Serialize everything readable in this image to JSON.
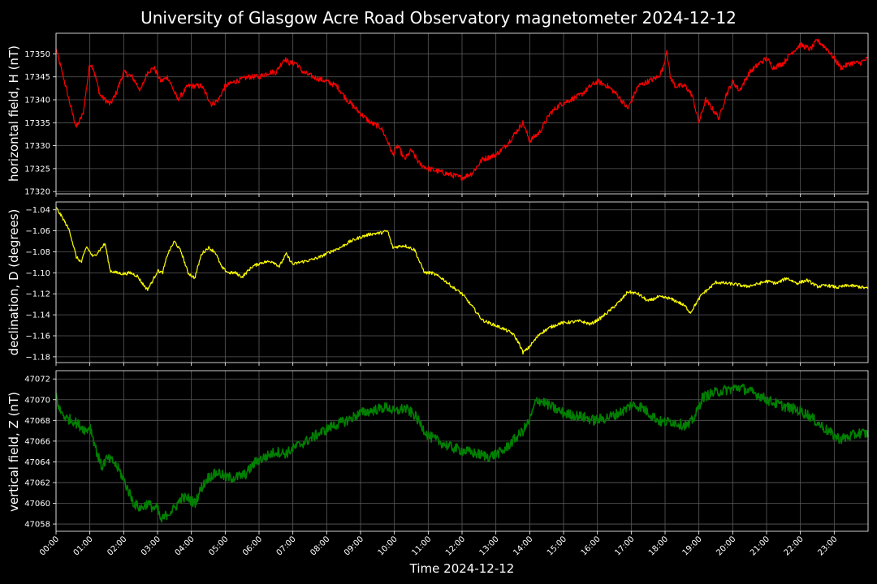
{
  "figure": {
    "title": "University of Glasgow Acre Road Observatory magnetometer 2024-12-12",
    "xlabel": "Time 2024-12-12"
  },
  "chart_data": [
    {
      "type": "line",
      "ylabel": "horizontal field, H (nT)",
      "color": "#ff0000",
      "xlim": [
        0,
        24
      ],
      "ylim": [
        17319.5,
        17354.5
      ],
      "yticks": [
        17320,
        17325,
        17330,
        17335,
        17340,
        17345,
        17350
      ],
      "x_ticklabels": [],
      "noise": 0.6,
      "series": [
        {
          "x": [
            0.0,
            0.25,
            0.45,
            0.6,
            0.8,
            1.0,
            1.1,
            1.3,
            1.6,
            1.75,
            2.0,
            2.25,
            2.5,
            2.7,
            2.9,
            3.1,
            3.3,
            3.6,
            3.9,
            4.3,
            4.6,
            4.8,
            5.0,
            5.3,
            5.7,
            6.0,
            6.3,
            6.5,
            6.75,
            6.9,
            7.1,
            7.3,
            7.6,
            8.0,
            8.3,
            8.6,
            9.0,
            9.3,
            9.6,
            9.8,
            9.95,
            10.1,
            10.3,
            10.5,
            10.75,
            11.0,
            11.5,
            12.0,
            12.3,
            12.6,
            13.0,
            13.3,
            13.6,
            13.8,
            14.0,
            14.3,
            14.6,
            14.9,
            15.2,
            15.5,
            15.8,
            16.0,
            16.3,
            16.6,
            16.9,
            17.2,
            17.5,
            17.8,
            17.95,
            18.05,
            18.15,
            18.3,
            18.6,
            18.8,
            19.0,
            19.2,
            19.4,
            19.6,
            19.8,
            20.0,
            20.2,
            20.5,
            20.8,
            21.0,
            21.2,
            21.5,
            21.7,
            22.0,
            22.3,
            22.5,
            22.8,
            23.0,
            23.2,
            23.5,
            23.75,
            24.0
          ],
          "y": [
            17351,
            17344,
            17338,
            17334,
            17337,
            17348,
            17347,
            17341,
            17339,
            17341,
            17346,
            17345,
            17342,
            17346,
            17347,
            17344,
            17345,
            17340,
            17343,
            17343,
            17339,
            17340,
            17343,
            17344,
            17345,
            17345,
            17346,
            17346,
            17349,
            17348,
            17348,
            17346,
            17345,
            17344,
            17343,
            17340,
            17337,
            17335,
            17334,
            17331,
            17328,
            17330,
            17327,
            17329,
            17326,
            17325,
            17324,
            17323,
            17324,
            17327,
            17328,
            17330,
            17333,
            17335,
            17331,
            17333,
            17337,
            17339,
            17340,
            17341,
            17343,
            17344,
            17343,
            17341,
            17338,
            17343,
            17344,
            17345,
            17347,
            17351,
            17345,
            17343,
            17343,
            17341,
            17335,
            17340,
            17338,
            17336,
            17341,
            17344,
            17342,
            17346,
            17348,
            17349,
            17347,
            17348,
            17350,
            17352,
            17351,
            17353,
            17351,
            17349,
            17347,
            17348,
            17348,
            17349
          ]
        }
      ]
    },
    {
      "type": "line",
      "ylabel": "declination, D (degrees)",
      "color": "#ffff00",
      "xlim": [
        0,
        24
      ],
      "ylim": [
        -1.1855,
        -1.0325
      ],
      "yticks": [
        -1.18,
        -1.16,
        -1.14,
        -1.12,
        -1.1,
        -1.08,
        -1.06,
        -1.04
      ],
      "x_ticklabels": [],
      "noise": 0.0015,
      "series": [
        {
          "x": [
            0.0,
            0.2,
            0.4,
            0.6,
            0.75,
            0.9,
            1.1,
            1.3,
            1.45,
            1.6,
            1.8,
            2.0,
            2.2,
            2.4,
            2.55,
            2.7,
            2.85,
            3.0,
            3.15,
            3.3,
            3.5,
            3.7,
            3.9,
            4.1,
            4.3,
            4.5,
            4.7,
            4.9,
            5.1,
            5.3,
            5.5,
            5.8,
            6.1,
            6.4,
            6.6,
            6.8,
            7.0,
            7.2,
            7.5,
            7.8,
            8.1,
            8.4,
            8.7,
            9.0,
            9.3,
            9.6,
            9.8,
            9.95,
            10.1,
            10.3,
            10.6,
            10.75,
            10.9,
            11.1,
            11.4,
            11.7,
            12.0,
            12.3,
            12.6,
            12.9,
            13.2,
            13.5,
            13.7,
            13.8,
            13.95,
            14.1,
            14.3,
            14.6,
            14.9,
            15.2,
            15.5,
            15.8,
            16.1,
            16.4,
            16.7,
            16.9,
            17.2,
            17.5,
            17.8,
            18.1,
            18.4,
            18.6,
            18.75,
            18.9,
            19.1,
            19.3,
            19.5,
            19.8,
            20.1,
            20.4,
            20.7,
            21.0,
            21.3,
            21.6,
            21.9,
            22.2,
            22.5,
            22.8,
            23.1,
            23.4,
            23.7,
            24.0
          ],
          "y": [
            -1.038,
            -1.048,
            -1.06,
            -1.085,
            -1.09,
            -1.075,
            -1.085,
            -1.078,
            -1.072,
            -1.098,
            -1.1,
            -1.101,
            -1.1,
            -1.103,
            -1.11,
            -1.116,
            -1.108,
            -1.098,
            -1.1,
            -1.082,
            -1.07,
            -1.08,
            -1.1,
            -1.105,
            -1.082,
            -1.076,
            -1.08,
            -1.095,
            -1.1,
            -1.1,
            -1.104,
            -1.094,
            -1.09,
            -1.089,
            -1.094,
            -1.082,
            -1.092,
            -1.09,
            -1.088,
            -1.085,
            -1.08,
            -1.076,
            -1.07,
            -1.066,
            -1.063,
            -1.062,
            -1.06,
            -1.076,
            -1.075,
            -1.074,
            -1.078,
            -1.09,
            -1.1,
            -1.1,
            -1.105,
            -1.113,
            -1.12,
            -1.132,
            -1.145,
            -1.149,
            -1.153,
            -1.158,
            -1.168,
            -1.176,
            -1.172,
            -1.166,
            -1.158,
            -1.152,
            -1.148,
            -1.147,
            -1.146,
            -1.149,
            -1.143,
            -1.135,
            -1.126,
            -1.118,
            -1.12,
            -1.127,
            -1.123,
            -1.124,
            -1.128,
            -1.132,
            -1.138,
            -1.13,
            -1.12,
            -1.115,
            -1.109,
            -1.11,
            -1.111,
            -1.113,
            -1.111,
            -1.108,
            -1.11,
            -1.105,
            -1.11,
            -1.107,
            -1.113,
            -1.112,
            -1.114,
            -1.112,
            -1.113,
            -1.115
          ]
        }
      ]
    },
    {
      "type": "line",
      "ylabel": "vertical field, Z (nT)",
      "color": "#008000",
      "xlim": [
        0,
        24
      ],
      "ylim": [
        47057.3,
        47072.8
      ],
      "yticks": [
        47058,
        47060,
        47062,
        47064,
        47066,
        47068,
        47070,
        47072
      ],
      "x_ticklabels": [
        "00:00",
        "01:00",
        "02:00",
        "03:00",
        "04:00",
        "05:00",
        "06:00",
        "07:00",
        "08:00",
        "09:00",
        "10:00",
        "11:00",
        "12:00",
        "13:00",
        "14:00",
        "15:00",
        "16:00",
        "17:00",
        "18:00",
        "19:00",
        "20:00",
        "21:00",
        "22:00",
        "23:00"
      ],
      "noise": 0.5,
      "series": [
        {
          "x": [
            0.0,
            0.1,
            0.3,
            0.5,
            0.7,
            0.9,
            1.0,
            1.2,
            1.35,
            1.5,
            1.7,
            1.9,
            2.1,
            2.3,
            2.5,
            2.7,
            2.9,
            3.0,
            3.1,
            3.3,
            3.5,
            3.7,
            3.9,
            4.1,
            4.3,
            4.5,
            4.8,
            5.0,
            5.3,
            5.6,
            5.9,
            6.2,
            6.5,
            6.8,
            7.1,
            7.4,
            7.8,
            8.2,
            8.6,
            9.0,
            9.4,
            9.8,
            10.0,
            10.3,
            10.6,
            10.8,
            11.0,
            11.3,
            11.6,
            12.0,
            12.4,
            12.8,
            13.2,
            13.5,
            13.8,
            14.0,
            14.2,
            14.4,
            14.7,
            15.0,
            15.3,
            15.6,
            15.9,
            16.2,
            16.5,
            16.8,
            17.0,
            17.3,
            17.6,
            17.9,
            18.2,
            18.5,
            18.7,
            18.9,
            19.1,
            19.3,
            19.6,
            19.9,
            20.2,
            20.5,
            20.8,
            21.0,
            21.3,
            21.6,
            21.9,
            22.2,
            22.5,
            22.8,
            23.0,
            23.2,
            23.5,
            23.75,
            24.0
          ],
          "y": [
            47070.5,
            47069,
            47068.2,
            47068,
            47067.5,
            47067,
            47067.5,
            47065,
            47063.5,
            47064.3,
            47064,
            47063,
            47061.5,
            47060,
            47059.5,
            47060,
            47059.5,
            47059.5,
            47058.3,
            47059,
            47059.5,
            47060.5,
            47060.5,
            47060,
            47061.5,
            47062.5,
            47063,
            47062.5,
            47062.5,
            47062.8,
            47064,
            47064.5,
            47065,
            47064.8,
            47065.5,
            47066,
            47066.8,
            47067.5,
            47068,
            47068.7,
            47069,
            47069.3,
            47068.8,
            47069.2,
            47068.5,
            47067.5,
            47066.5,
            47066,
            47065.5,
            47065.1,
            47064.8,
            47064.5,
            47065,
            47066,
            47067,
            47068,
            47070,
            47069.8,
            47069.2,
            47068.7,
            47068.5,
            47068.3,
            47068,
            47068.2,
            47068.5,
            47069,
            47069.5,
            47069.3,
            47068.5,
            47067.8,
            47067.9,
            47067.6,
            47067.5,
            47068.5,
            47070.2,
            47070.5,
            47070.8,
            47071,
            47071.2,
            47070.8,
            47070.4,
            47070,
            47069.6,
            47069.3,
            47069.0,
            47068.6,
            47067.8,
            47067,
            47066.5,
            47066.2,
            47066.5,
            47066.8,
            47066.7
          ]
        }
      ]
    }
  ]
}
